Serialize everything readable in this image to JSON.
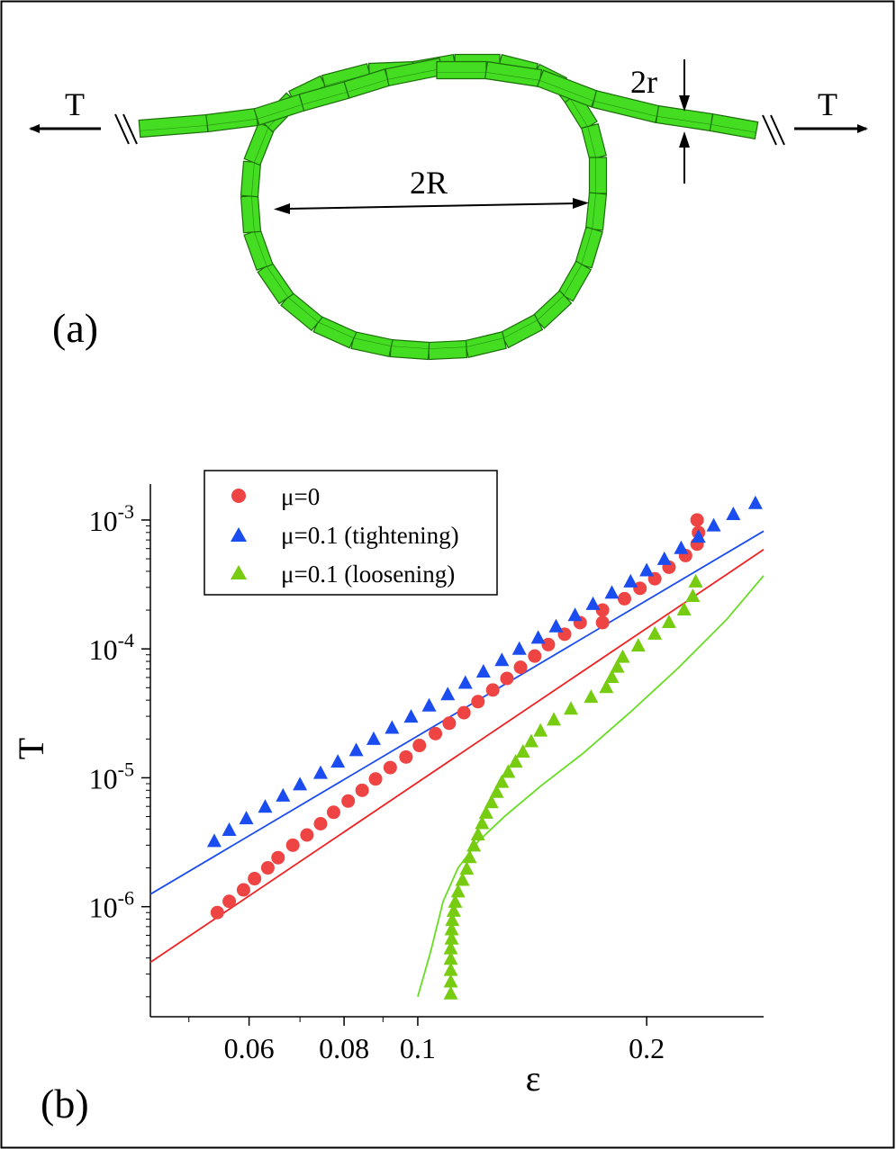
{
  "panel_a": {
    "label": "(a)",
    "tension_left": "T",
    "tension_right": "T",
    "diameter_label": "2R",
    "thickness_label": "2r",
    "rope_color": "#44dd22",
    "rope_edge_color": "#1b6e08"
  },
  "panel_b": {
    "label": "(b)"
  },
  "chart_data": {
    "type": "scatter",
    "xscale": "log",
    "yscale": "log",
    "xlabel": "ε",
    "ylabel": "T",
    "xlim": [
      0.0445,
      0.285
    ],
    "ylim": [
      1.4e-07,
      0.0019
    ],
    "xticks_major": [
      0.06,
      0.08,
      0.1,
      0.2
    ],
    "xtick_labels": [
      "0.06",
      "0.08",
      "0.1",
      "0.2"
    ],
    "xticks_minor": [
      0.05,
      0.07,
      0.09
    ],
    "yticks": [
      {
        "value": 1e-06,
        "base": "10",
        "exp": "-6"
      },
      {
        "value": 1e-05,
        "base": "10",
        "exp": "-5"
      },
      {
        "value": 0.0001,
        "base": "10",
        "exp": "-4"
      },
      {
        "value": 0.001,
        "base": "10",
        "exp": "-3"
      }
    ],
    "legend_position": "top-left",
    "series": [
      {
        "name": "μ=0",
        "marker": "circle",
        "color": "#ee4444",
        "x": [
          0.0545,
          0.0565,
          0.059,
          0.061,
          0.0635,
          0.0655,
          0.0685,
          0.0715,
          0.0745,
          0.0775,
          0.081,
          0.0845,
          0.088,
          0.092,
          0.0965,
          0.1005,
          0.1055,
          0.11,
          0.115,
          0.12,
          0.1255,
          0.131,
          0.1365,
          0.1425,
          0.1485,
          0.156,
          0.1635,
          0.175,
          0.175,
          0.187,
          0.196,
          0.205,
          0.214,
          0.225,
          0.233,
          0.234,
          0.233
        ],
        "y": [
          9e-07,
          1.1e-06,
          1.35e-06,
          1.65e-06,
          2e-06,
          2.4e-06,
          3e-06,
          3.6e-06,
          4.4e-06,
          5.4e-06,
          6.6e-06,
          8e-06,
          9.8e-06,
          1.2e-05,
          1.45e-05,
          1.78e-05,
          2.2e-05,
          2.65e-05,
          3.2e-05,
          3.9e-05,
          4.8e-05,
          5.9e-05,
          7.2e-05,
          8.8e-05,
          0.000108,
          0.00013,
          0.00016,
          0.00016,
          0.0002,
          0.000245,
          0.000295,
          0.00035,
          0.00043,
          0.00053,
          0.00065,
          0.0008,
          0.001
        ]
      },
      {
        "name": "μ=0.1 (tightening)",
        "marker": "triangle",
        "color": "#1a4cf0",
        "x": [
          0.054,
          0.0565,
          0.0595,
          0.063,
          0.0665,
          0.07,
          0.0745,
          0.0785,
          0.083,
          0.0875,
          0.0925,
          0.098,
          0.1035,
          0.1095,
          0.1155,
          0.122,
          0.129,
          0.136,
          0.144,
          0.152,
          0.161,
          0.17,
          0.18,
          0.1905,
          0.2,
          0.211,
          0.222,
          0.234,
          0.245,
          0.26,
          0.278
        ],
        "y": [
          3.2e-06,
          3.9e-06,
          4.8e-06,
          5.9e-06,
          7.2e-06,
          8.8e-06,
          1.08e-05,
          1.32e-05,
          1.62e-05,
          1.98e-05,
          2.42e-05,
          2.95e-05,
          3.6e-05,
          4.4e-05,
          5.4e-05,
          6.6e-05,
          8.1e-05,
          9.9e-05,
          0.000121,
          0.000148,
          0.000181,
          0.000221,
          0.00027,
          0.00033,
          0.000403,
          0.000493,
          0.0006,
          0.000735,
          0.000898,
          0.0011,
          0.00134
        ]
      },
      {
        "name": "μ=0.1 (loosening)",
        "marker": "triangle",
        "color": "#77cc11",
        "x": [
          0.1105,
          0.1105,
          0.1105,
          0.1105,
          0.1105,
          0.1108,
          0.1108,
          0.111,
          0.1115,
          0.112,
          0.113,
          0.1145,
          0.116,
          0.117,
          0.1185,
          0.12,
          0.1215,
          0.123,
          0.125,
          0.127,
          0.129,
          0.1315,
          0.1345,
          0.1375,
          0.141,
          0.145,
          0.151,
          0.159,
          0.169,
          0.177,
          0.18,
          0.183,
          0.186,
          0.195,
          0.205,
          0.214,
          0.224,
          0.23,
          0.232
        ],
        "y": [
          2.1e-07,
          2.6e-07,
          3.2e-07,
          3.9e-07,
          4.7e-07,
          5.6e-07,
          6.6e-07,
          7.8e-07,
          9.2e-07,
          1.08e-06,
          1.3e-06,
          1.6e-06,
          1.95e-06,
          2.4e-06,
          2.95e-06,
          3.6e-06,
          4.4e-06,
          5.3e-06,
          6.4e-06,
          7.7e-06,
          9.2e-06,
          1.1e-05,
          1.32e-05,
          1.58e-05,
          1.9e-05,
          2.3e-05,
          2.8e-05,
          3.4e-05,
          4.2e-05,
          5e-05,
          6e-05,
          7.2e-05,
          8.6e-05,
          0.000105,
          0.00013,
          0.00016,
          0.0002,
          0.000255,
          0.00033
        ]
      }
    ],
    "lines": [
      {
        "name": "fit blue",
        "color": "#1a4cf0",
        "x": [
          0.0445,
          0.285
        ],
        "y": [
          1.25e-06,
          0.00082
        ]
      },
      {
        "name": "fit red",
        "color": "#ee2222",
        "x": [
          0.0445,
          0.285
        ],
        "y": [
          3.7e-07,
          0.00059
        ]
      },
      {
        "name": "fit green",
        "color": "#66dd22",
        "x": [
          0.1,
          0.104,
          0.108,
          0.113,
          0.12,
          0.13,
          0.145,
          0.165,
          0.19,
          0.22,
          0.255,
          0.285
        ],
        "y": [
          2e-07,
          4.5e-07,
          1.1e-06,
          2e-06,
          3.2e-06,
          5e-06,
          8.6e-06,
          1.55e-05,
          3.2e-05,
          7.1e-05,
          0.00017,
          0.00037
        ]
      }
    ]
  }
}
